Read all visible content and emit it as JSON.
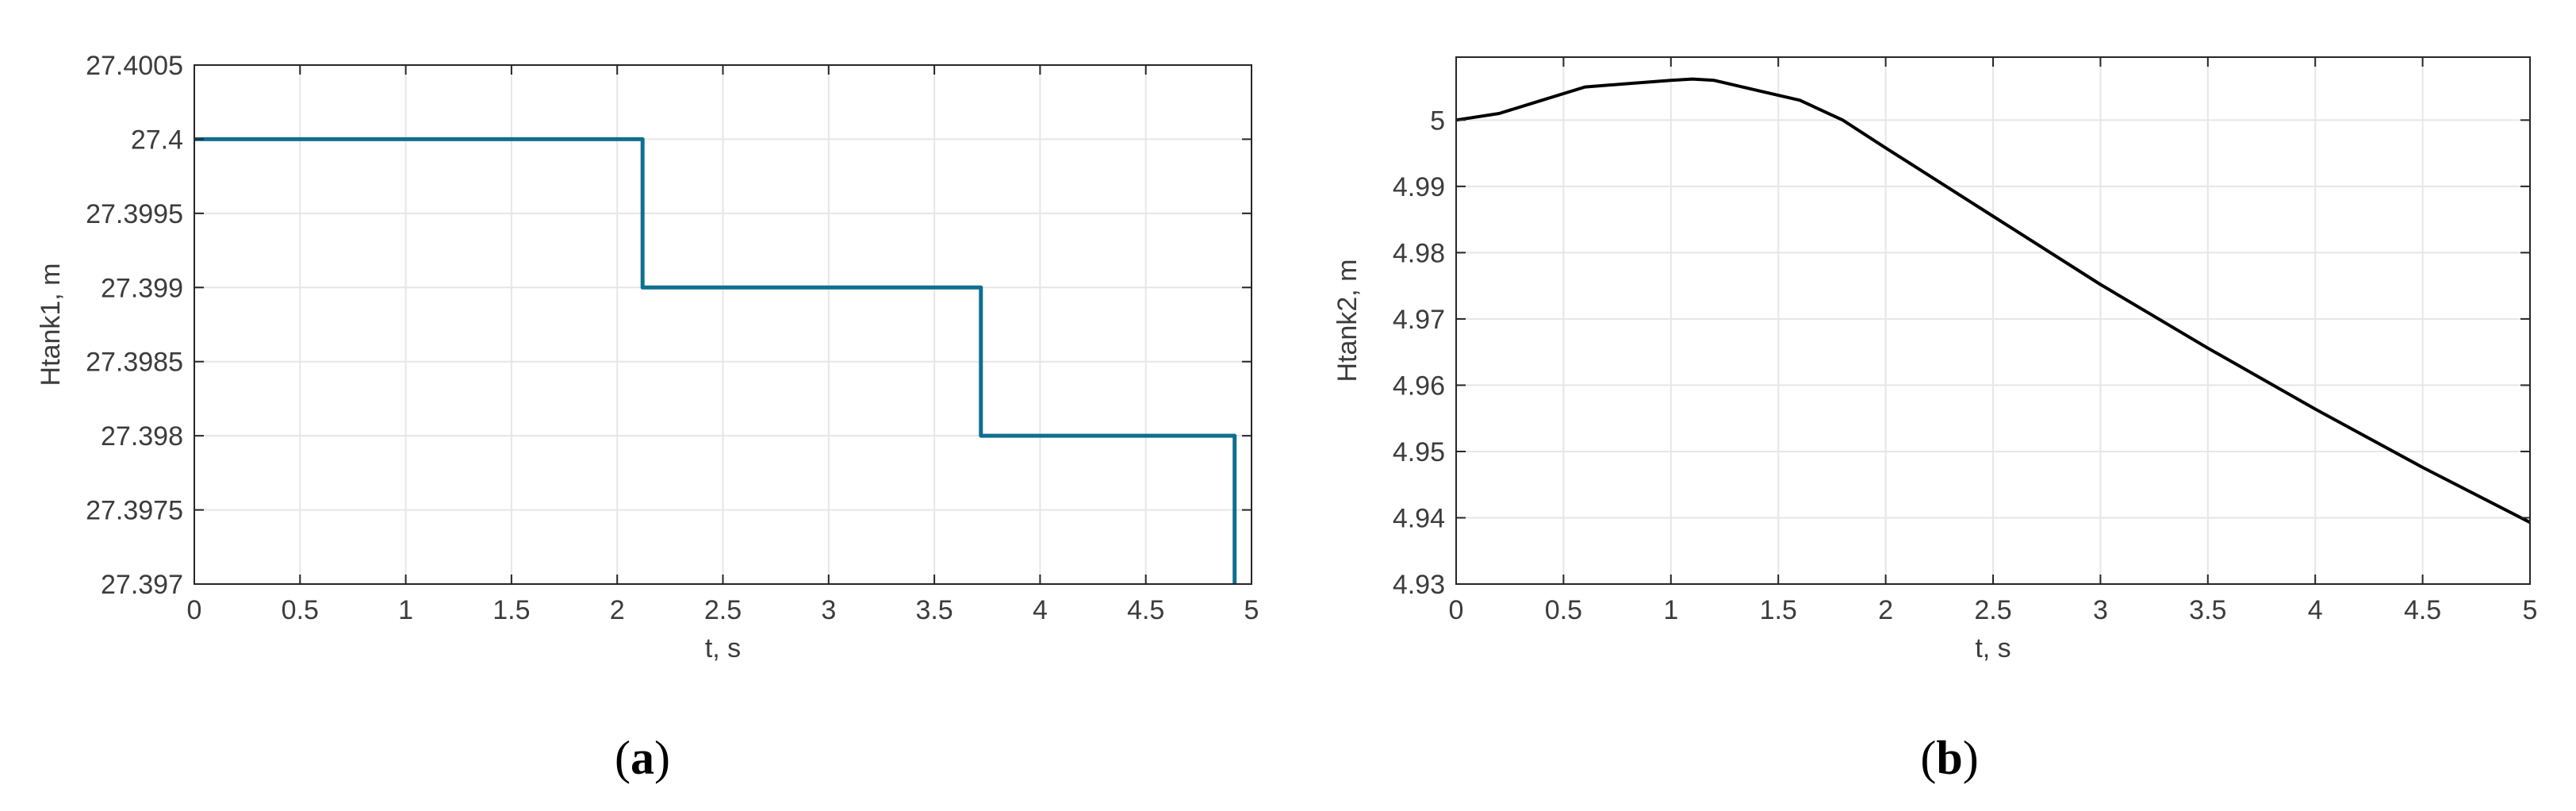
{
  "panels": [
    {
      "caption_letter": "a",
      "chart_data": {
        "type": "line",
        "xlabel": "t, s",
        "ylabel": "Htank1, m",
        "xlim": [
          0,
          5
        ],
        "ylim": [
          27.397,
          27.4005
        ],
        "xticks": [
          "0",
          "0.5",
          "1",
          "1.5",
          "2",
          "2.5",
          "3",
          "3.5",
          "4",
          "4.5",
          "5"
        ],
        "yticks": [
          "27.397",
          "27.3975",
          "27.398",
          "27.3985",
          "27.399",
          "27.3995",
          "27.4",
          "27.4005"
        ],
        "grid": true,
        "series": [
          {
            "color": "#0f6f8f",
            "x": [
              0,
              2.12,
              2.12,
              3.72,
              3.72,
              4.92,
              4.92
            ],
            "y": [
              27.4,
              27.4,
              27.399,
              27.399,
              27.398,
              27.398,
              27.397
            ]
          }
        ]
      }
    },
    {
      "caption_letter": "b",
      "chart_data": {
        "type": "line",
        "xlabel": "t, s",
        "ylabel": "Htank2, m",
        "xlim": [
          0,
          5
        ],
        "ylim": [
          4.93,
          5.0095
        ],
        "xticks": [
          "0",
          "0.5",
          "1",
          "1.5",
          "2",
          "2.5",
          "3",
          "3.5",
          "4",
          "4.5",
          "5"
        ],
        "yticks": [
          "4.93",
          "4.94",
          "4.95",
          "4.96",
          "4.97",
          "4.98",
          "4.99",
          "5"
        ],
        "grid": true,
        "series": [
          {
            "color": "#000000",
            "x": [
              0,
              0.2,
              0.4,
              0.6,
              0.8,
              1.0,
              1.1,
              1.2,
              1.4,
              1.6,
              1.8,
              2.0,
              2.5,
              3.0,
              3.5,
              4.0,
              4.5,
              5.0
            ],
            "y": [
              5.0,
              5.001,
              5.003,
              5.005,
              5.0055,
              5.006,
              5.0062,
              5.006,
              5.0045,
              5.003,
              5.0,
              4.9958,
              4.9855,
              4.9752,
              4.9656,
              4.9564,
              4.9476,
              4.9393
            ]
          }
        ]
      }
    }
  ]
}
